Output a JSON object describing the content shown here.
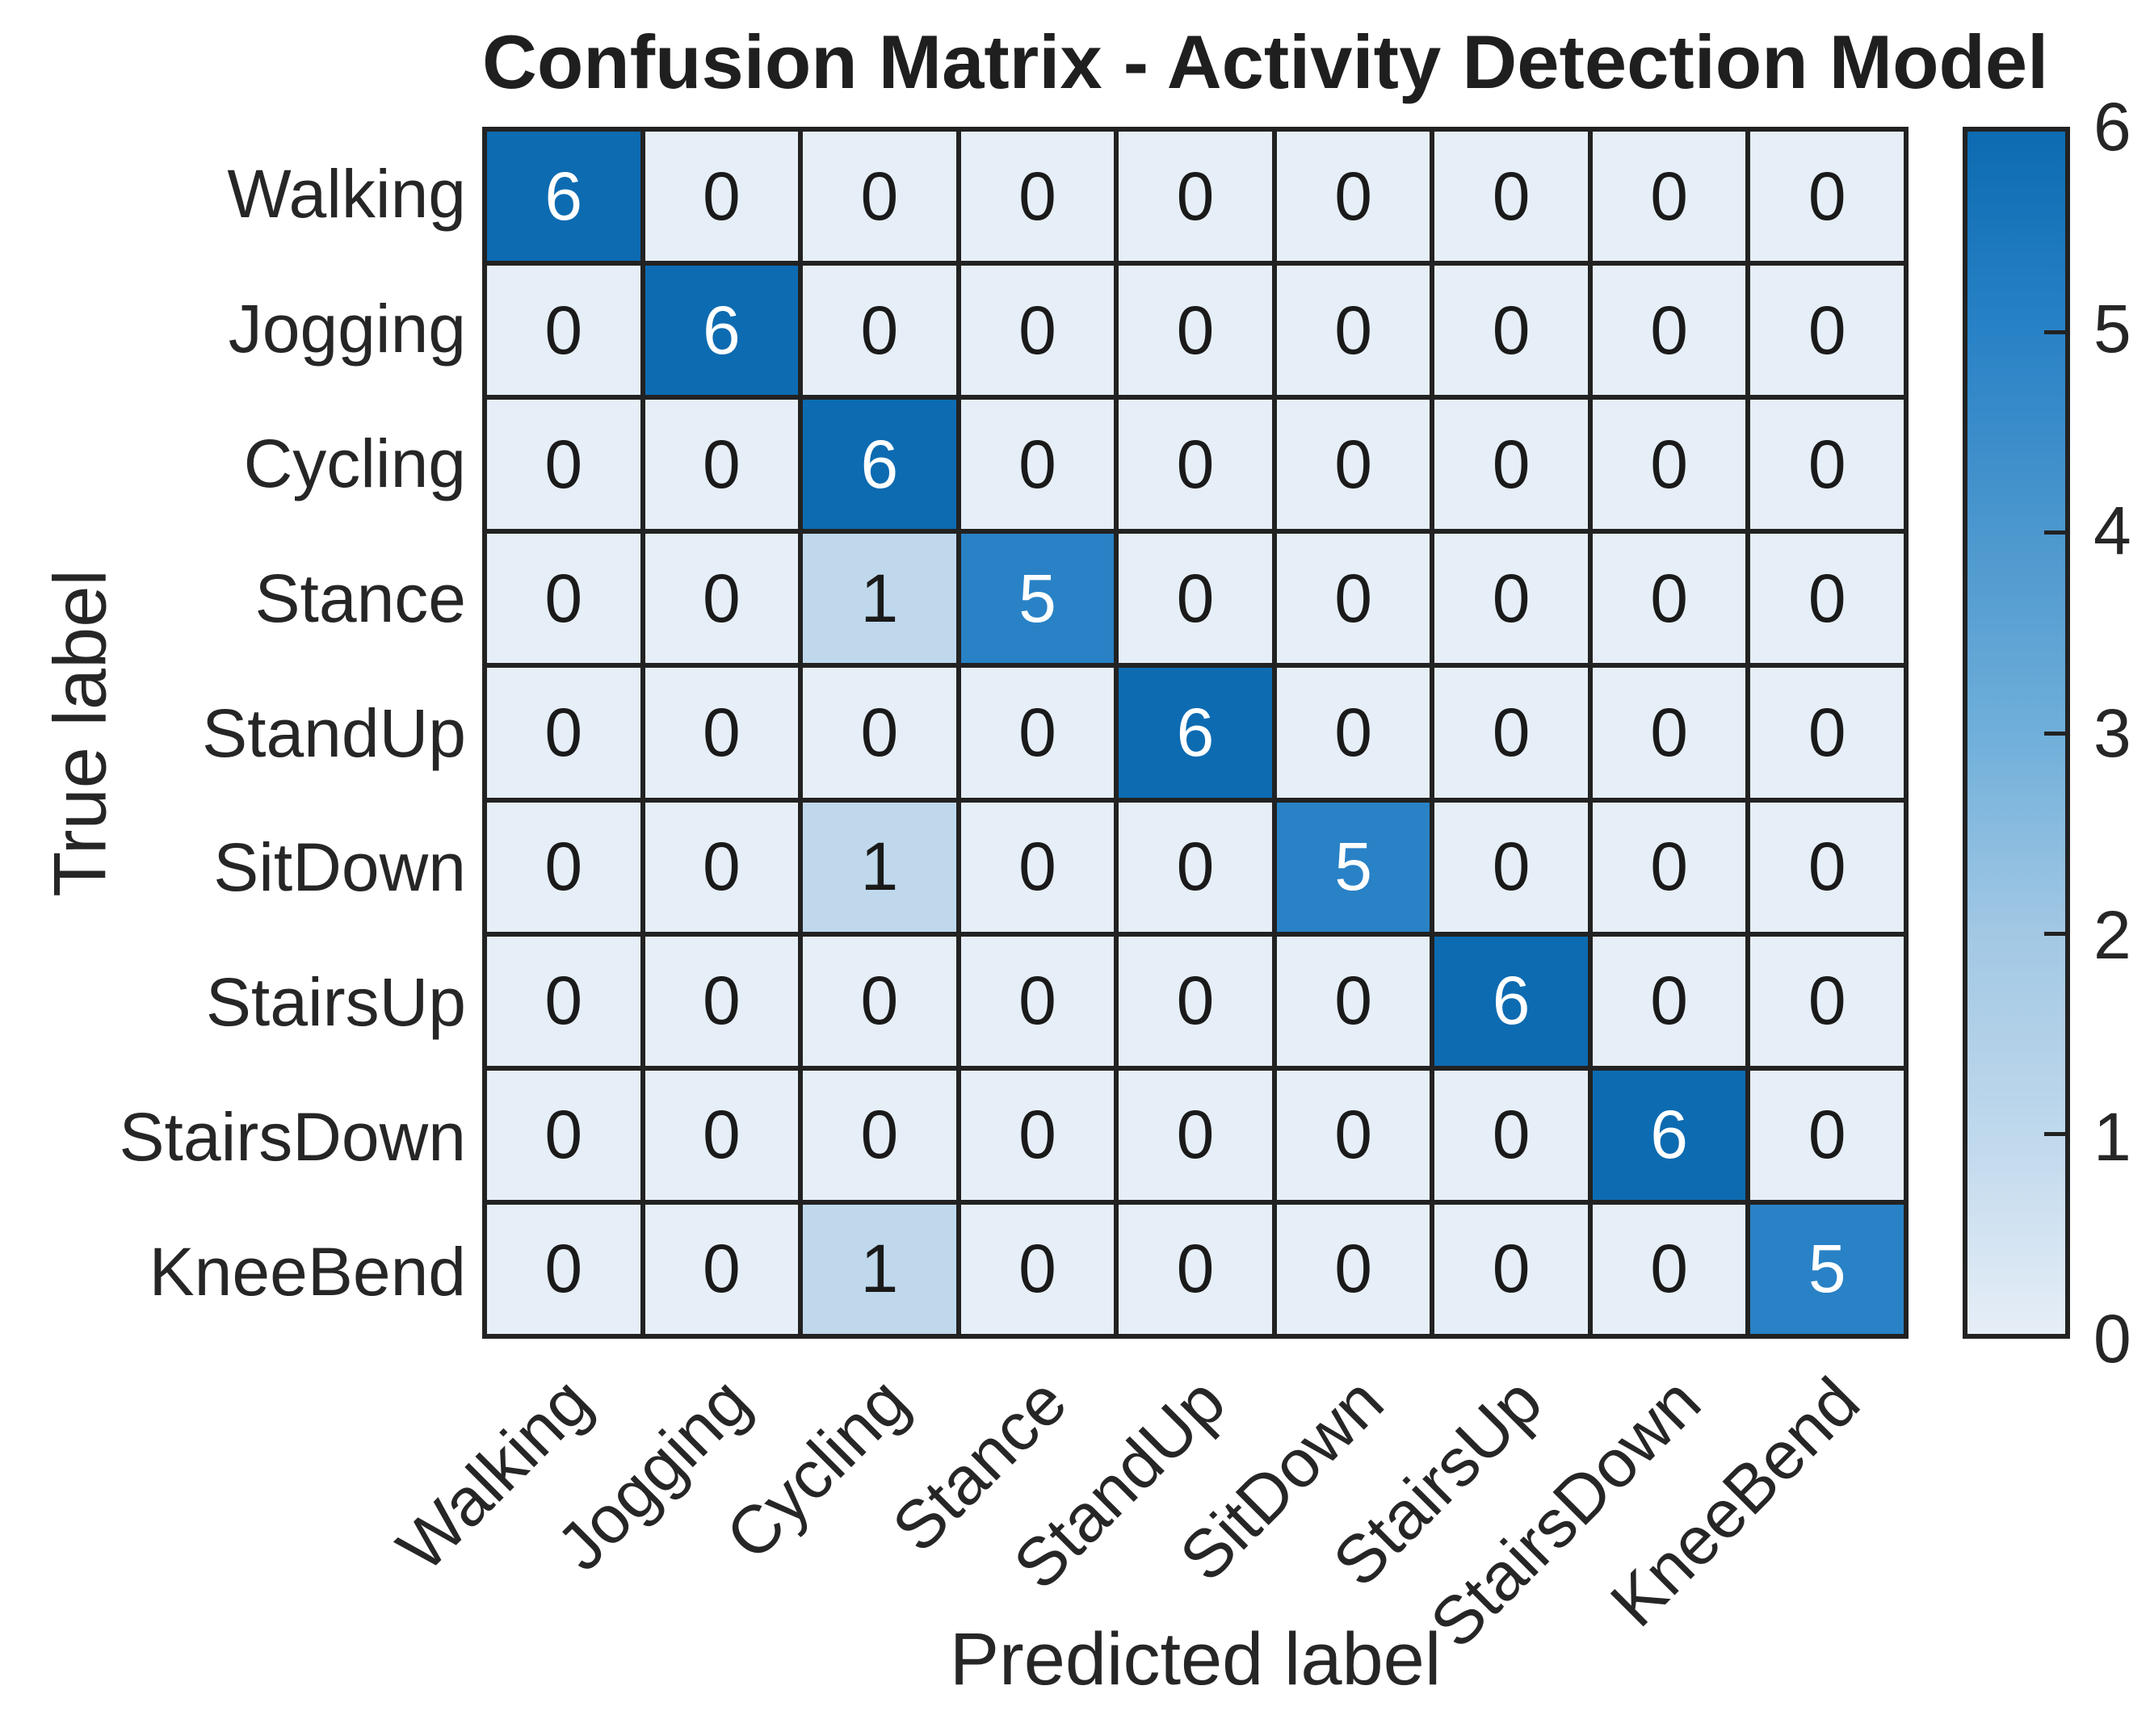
{
  "title": "Confusion Matrix - Activity Detection Model",
  "axes": {
    "x_label": "Predicted label",
    "y_label": "True label"
  },
  "chart_data": {
    "type": "heatmap",
    "title": "Confusion Matrix - Activity Detection Model",
    "xlabel": "Predicted label",
    "ylabel": "True label",
    "categories": [
      "Walking",
      "Jogging",
      "Cycling",
      "Stance",
      "StandUp",
      "SitDown",
      "StairsUp",
      "StairsDown",
      "KneeBend"
    ],
    "x_tick_labels": [
      "Walking",
      "Jogging",
      "Cycling",
      "Stance",
      "StandUp",
      "SitDown",
      "StairsUp",
      "StairsDown",
      "KneeBend"
    ],
    "y_tick_labels": [
      "Walking",
      "Jogging",
      "Cycling",
      "Stance",
      "StandUp",
      "SitDown",
      "StairsUp",
      "StairsDown",
      "KneeBend"
    ],
    "matrix": [
      [
        6,
        0,
        0,
        0,
        0,
        0,
        0,
        0,
        0
      ],
      [
        0,
        6,
        0,
        0,
        0,
        0,
        0,
        0,
        0
      ],
      [
        0,
        0,
        6,
        0,
        0,
        0,
        0,
        0,
        0
      ],
      [
        0,
        0,
        1,
        5,
        0,
        0,
        0,
        0,
        0
      ],
      [
        0,
        0,
        0,
        0,
        6,
        0,
        0,
        0,
        0
      ],
      [
        0,
        0,
        1,
        0,
        0,
        5,
        0,
        0,
        0
      ],
      [
        0,
        0,
        0,
        0,
        0,
        0,
        6,
        0,
        0
      ],
      [
        0,
        0,
        0,
        0,
        0,
        0,
        0,
        6,
        0
      ],
      [
        0,
        0,
        1,
        0,
        0,
        0,
        0,
        0,
        5
      ]
    ],
    "colorbar": {
      "min": 0,
      "max": 6,
      "ticks": [
        0,
        1,
        2,
        3,
        4,
        5,
        6
      ]
    },
    "colors": {
      "scale": {
        "0": "#e6eef7",
        "1": "#bfd8ec",
        "2": "#a2c8e4",
        "3": "#6fafda",
        "4": "#4c97ce",
        "5": "#2982c6",
        "6": "#0d6bb1"
      },
      "grid_line": "#222222",
      "text_on_light": "#1a1a1a",
      "text_on_dark": "#ffffff"
    },
    "legend_position": "right-colorbar",
    "grid": "on"
  }
}
